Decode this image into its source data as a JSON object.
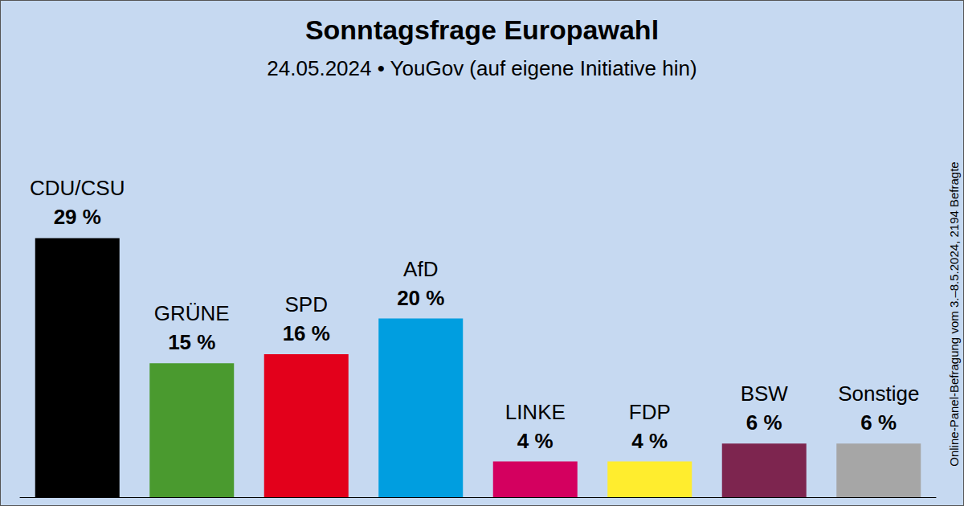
{
  "chart_data": {
    "type": "bar",
    "title": "Sonntagsfrage Europawahl",
    "subtitle": "24.05.2024 • YouGov (auf eigene Initiative hin)",
    "annotation": "Online-Panel-Befragung vom 3.–8.5.2024, 2194 Befragte",
    "categories": [
      "CDU/CSU",
      "GRÜNE",
      "SPD",
      "AfD",
      "LINKE",
      "FDP",
      "BSW",
      "Sonstige"
    ],
    "values": [
      29,
      15,
      16,
      20,
      4,
      4,
      6,
      6
    ],
    "value_labels": [
      "29 %",
      "15 %",
      "16 %",
      "20 %",
      "4 %",
      "4 %",
      "6 %",
      "6 %"
    ],
    "colors": [
      "#000000",
      "#4a9a2f",
      "#e3001b",
      "#009ee0",
      "#d4005f",
      "#ffed2e",
      "#7d254f",
      "#a6a6a6"
    ],
    "ylim": [
      0,
      40
    ],
    "grid": false,
    "data_labels": true,
    "tick_labels": false
  }
}
